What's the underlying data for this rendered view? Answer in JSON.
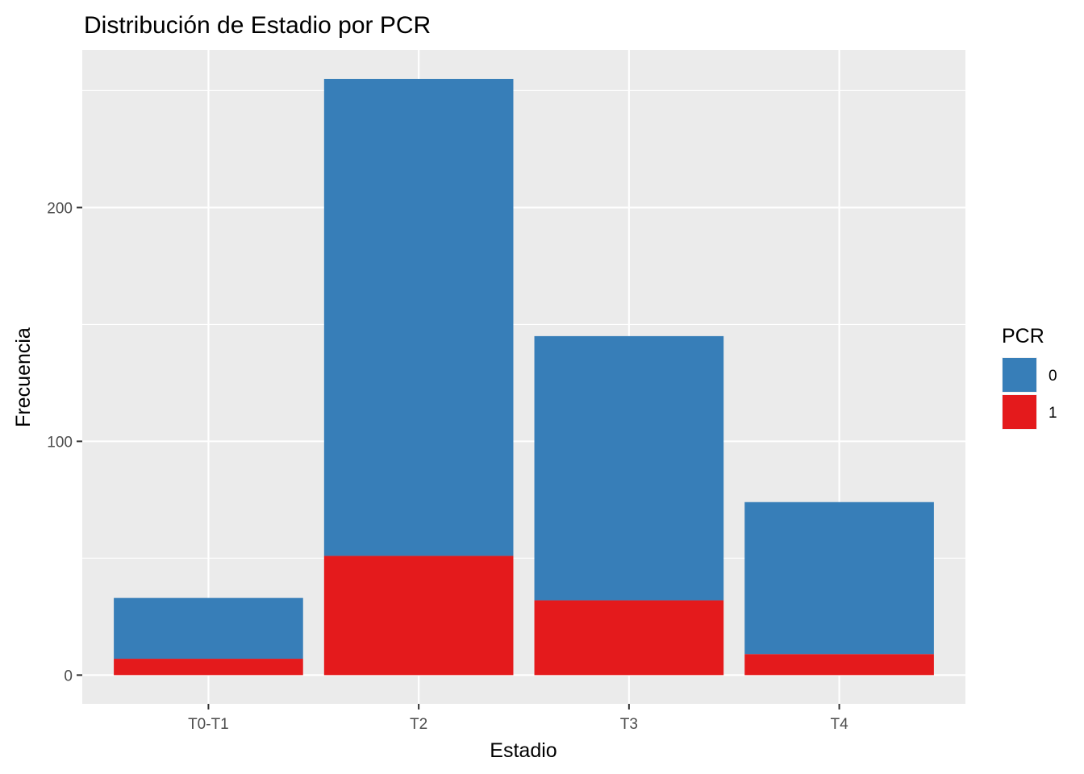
{
  "chart_data": {
    "type": "bar",
    "stacked": true,
    "title": "Distribución de Estadio por PCR",
    "xlabel": "Estadio",
    "ylabel": "Frecuencia",
    "categories": [
      "T0-T1",
      "T2",
      "T3",
      "T4"
    ],
    "series": [
      {
        "name": "0",
        "color": "#377EB8",
        "values": [
          26,
          204,
          113,
          65
        ]
      },
      {
        "name": "1",
        "color": "#E41A1C",
        "values": [
          7,
          51,
          32,
          9
        ]
      }
    ],
    "ylim": [
      -12.3,
      267.4
    ],
    "yticks": [
      0,
      100,
      200
    ],
    "grid": true,
    "legend": {
      "title": "PCR",
      "position": "right"
    },
    "colors": {
      "panel_background": "#EBEBEB",
      "grid": "#FFFFFF"
    }
  }
}
